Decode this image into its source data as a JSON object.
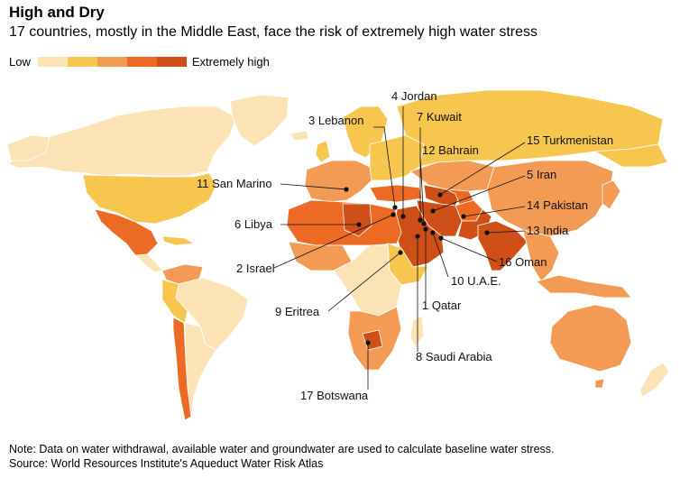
{
  "header": {
    "title": "High and Dry",
    "subtitle": "17 countries, mostly in the Middle East, face the risk of extremely high water stress"
  },
  "legend": {
    "low_label": "Low",
    "high_label": "Extremely high",
    "scale_colors": [
      "#fbe3b5",
      "#f7c64e",
      "#f39a55",
      "#ec6a23",
      "#cf4f18"
    ]
  },
  "map": {
    "ocean_color": "#ffffff",
    "border_color": "#ffffff",
    "callouts": [
      {
        "id": "jordan",
        "label": "4 Jordan"
      },
      {
        "id": "kuwait",
        "label": "7 Kuwait"
      },
      {
        "id": "lebanon",
        "label": "3 Lebanon"
      },
      {
        "id": "bahrain",
        "label": "12 Bahrain"
      },
      {
        "id": "turkmenistan",
        "label": "15 Turkmenistan"
      },
      {
        "id": "iran",
        "label": "5 Iran"
      },
      {
        "id": "san-marino",
        "label": "11 San Marino"
      },
      {
        "id": "pakistan",
        "label": "14 Pakistan"
      },
      {
        "id": "libya",
        "label": "6 Libya"
      },
      {
        "id": "india",
        "label": "13 India"
      },
      {
        "id": "oman",
        "label": "16 Oman"
      },
      {
        "id": "israel",
        "label": "2 Israel"
      },
      {
        "id": "uae",
        "label": "10 U.A.E."
      },
      {
        "id": "qatar",
        "label": "1 Qatar"
      },
      {
        "id": "eritrea",
        "label": "9 Eritrea"
      },
      {
        "id": "saudi-arabia",
        "label": "8 Saudi Arabia"
      },
      {
        "id": "botswana",
        "label": "17 Botswana"
      }
    ]
  },
  "footer": {
    "note": "Note: Data on water withdrawal, available water and groundwater are used to calculate baseline water stress.",
    "source": "Source: World Resources Institute's Aqueduct Water Risk Atlas"
  }
}
